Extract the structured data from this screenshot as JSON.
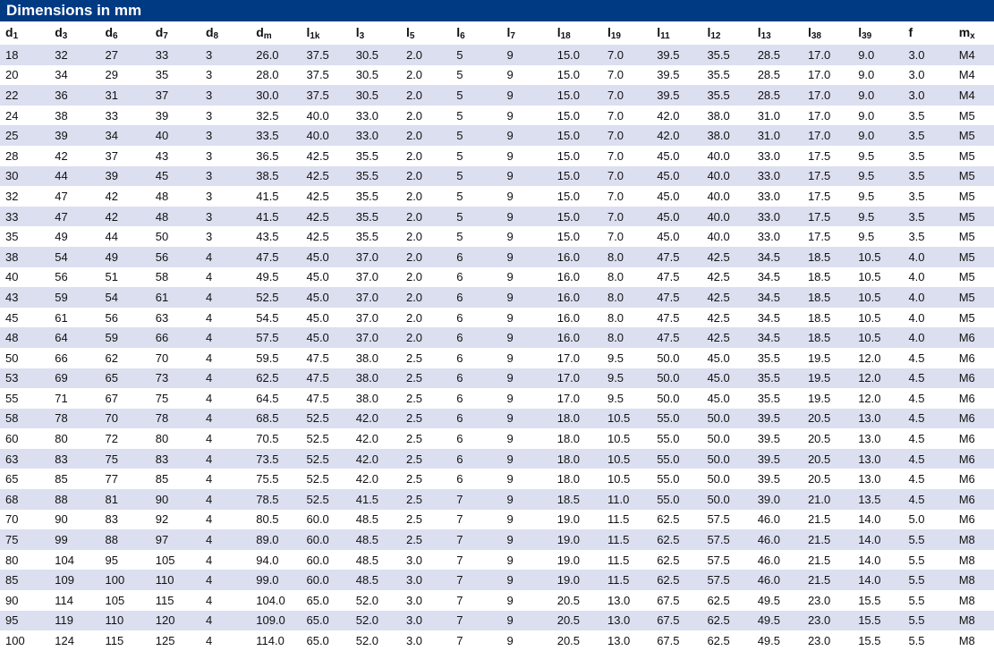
{
  "title": "Dimensions in mm",
  "columns": [
    {
      "base": "d",
      "sub": "1"
    },
    {
      "base": "d",
      "sub": "3"
    },
    {
      "base": "d",
      "sub": "6"
    },
    {
      "base": "d",
      "sub": "7"
    },
    {
      "base": "d",
      "sub": "8"
    },
    {
      "base": "d",
      "sub": "m"
    },
    {
      "base": "l",
      "sub": "1k"
    },
    {
      "base": "l",
      "sub": "3"
    },
    {
      "base": "l",
      "sub": "5"
    },
    {
      "base": "l",
      "sub": "6"
    },
    {
      "base": "l",
      "sub": "7"
    },
    {
      "base": "l",
      "sub": "18"
    },
    {
      "base": "l",
      "sub": "19"
    },
    {
      "base": "l",
      "sub": "11"
    },
    {
      "base": "l",
      "sub": "12"
    },
    {
      "base": "l",
      "sub": "13"
    },
    {
      "base": "l",
      "sub": "38"
    },
    {
      "base": "l",
      "sub": "39"
    },
    {
      "base": "f",
      "sub": ""
    },
    {
      "base": "m",
      "sub": "x"
    }
  ],
  "rows": [
    [
      "18",
      "32",
      "27",
      "33",
      "3",
      "26.0",
      "37.5",
      "30.5",
      "2.0",
      "5",
      "9",
      "15.0",
      "7.0",
      "39.5",
      "35.5",
      "28.5",
      "17.0",
      "9.0",
      "3.0",
      "M4"
    ],
    [
      "20",
      "34",
      "29",
      "35",
      "3",
      "28.0",
      "37.5",
      "30.5",
      "2.0",
      "5",
      "9",
      "15.0",
      "7.0",
      "39.5",
      "35.5",
      "28.5",
      "17.0",
      "9.0",
      "3.0",
      "M4"
    ],
    [
      "22",
      "36",
      "31",
      "37",
      "3",
      "30.0",
      "37.5",
      "30.5",
      "2.0",
      "5",
      "9",
      "15.0",
      "7.0",
      "39.5",
      "35.5",
      "28.5",
      "17.0",
      "9.0",
      "3.0",
      "M4"
    ],
    [
      "24",
      "38",
      "33",
      "39",
      "3",
      "32.5",
      "40.0",
      "33.0",
      "2.0",
      "5",
      "9",
      "15.0",
      "7.0",
      "42.0",
      "38.0",
      "31.0",
      "17.0",
      "9.0",
      "3.5",
      "M5"
    ],
    [
      "25",
      "39",
      "34",
      "40",
      "3",
      "33.5",
      "40.0",
      "33.0",
      "2.0",
      "5",
      "9",
      "15.0",
      "7.0",
      "42.0",
      "38.0",
      "31.0",
      "17.0",
      "9.0",
      "3.5",
      "M5"
    ],
    [
      "28",
      "42",
      "37",
      "43",
      "3",
      "36.5",
      "42.5",
      "35.5",
      "2.0",
      "5",
      "9",
      "15.0",
      "7.0",
      "45.0",
      "40.0",
      "33.0",
      "17.5",
      "9.5",
      "3.5",
      "M5"
    ],
    [
      "30",
      "44",
      "39",
      "45",
      "3",
      "38.5",
      "42.5",
      "35.5",
      "2.0",
      "5",
      "9",
      "15.0",
      "7.0",
      "45.0",
      "40.0",
      "33.0",
      "17.5",
      "9.5",
      "3.5",
      "M5"
    ],
    [
      "32",
      "47",
      "42",
      "48",
      "3",
      "41.5",
      "42.5",
      "35.5",
      "2.0",
      "5",
      "9",
      "15.0",
      "7.0",
      "45.0",
      "40.0",
      "33.0",
      "17.5",
      "9.5",
      "3.5",
      "M5"
    ],
    [
      "33",
      "47",
      "42",
      "48",
      "3",
      "41.5",
      "42.5",
      "35.5",
      "2.0",
      "5",
      "9",
      "15.0",
      "7.0",
      "45.0",
      "40.0",
      "33.0",
      "17.5",
      "9.5",
      "3.5",
      "M5"
    ],
    [
      "35",
      "49",
      "44",
      "50",
      "3",
      "43.5",
      "42.5",
      "35.5",
      "2.0",
      "5",
      "9",
      "15.0",
      "7.0",
      "45.0",
      "40.0",
      "33.0",
      "17.5",
      "9.5",
      "3.5",
      "M5"
    ],
    [
      "38",
      "54",
      "49",
      "56",
      "4",
      "47.5",
      "45.0",
      "37.0",
      "2.0",
      "6",
      "9",
      "16.0",
      "8.0",
      "47.5",
      "42.5",
      "34.5",
      "18.5",
      "10.5",
      "4.0",
      "M5"
    ],
    [
      "40",
      "56",
      "51",
      "58",
      "4",
      "49.5",
      "45.0",
      "37.0",
      "2.0",
      "6",
      "9",
      "16.0",
      "8.0",
      "47.5",
      "42.5",
      "34.5",
      "18.5",
      "10.5",
      "4.0",
      "M5"
    ],
    [
      "43",
      "59",
      "54",
      "61",
      "4",
      "52.5",
      "45.0",
      "37.0",
      "2.0",
      "6",
      "9",
      "16.0",
      "8.0",
      "47.5",
      "42.5",
      "34.5",
      "18.5",
      "10.5",
      "4.0",
      "M5"
    ],
    [
      "45",
      "61",
      "56",
      "63",
      "4",
      "54.5",
      "45.0",
      "37.0",
      "2.0",
      "6",
      "9",
      "16.0",
      "8.0",
      "47.5",
      "42.5",
      "34.5",
      "18.5",
      "10.5",
      "4.0",
      "M5"
    ],
    [
      "48",
      "64",
      "59",
      "66",
      "4",
      "57.5",
      "45.0",
      "37.0",
      "2.0",
      "6",
      "9",
      "16.0",
      "8.0",
      "47.5",
      "42.5",
      "34.5",
      "18.5",
      "10.5",
      "4.0",
      "M6"
    ],
    [
      "50",
      "66",
      "62",
      "70",
      "4",
      "59.5",
      "47.5",
      "38.0",
      "2.5",
      "6",
      "9",
      "17.0",
      "9.5",
      "50.0",
      "45.0",
      "35.5",
      "19.5",
      "12.0",
      "4.5",
      "M6"
    ],
    [
      "53",
      "69",
      "65",
      "73",
      "4",
      "62.5",
      "47.5",
      "38.0",
      "2.5",
      "6",
      "9",
      "17.0",
      "9.5",
      "50.0",
      "45.0",
      "35.5",
      "19.5",
      "12.0",
      "4.5",
      "M6"
    ],
    [
      "55",
      "71",
      "67",
      "75",
      "4",
      "64.5",
      "47.5",
      "38.0",
      "2.5",
      "6",
      "9",
      "17.0",
      "9.5",
      "50.0",
      "45.0",
      "35.5",
      "19.5",
      "12.0",
      "4.5",
      "M6"
    ],
    [
      "58",
      "78",
      "70",
      "78",
      "4",
      "68.5",
      "52.5",
      "42.0",
      "2.5",
      "6",
      "9",
      "18.0",
      "10.5",
      "55.0",
      "50.0",
      "39.5",
      "20.5",
      "13.0",
      "4.5",
      "M6"
    ],
    [
      "60",
      "80",
      "72",
      "80",
      "4",
      "70.5",
      "52.5",
      "42.0",
      "2.5",
      "6",
      "9",
      "18.0",
      "10.5",
      "55.0",
      "50.0",
      "39.5",
      "20.5",
      "13.0",
      "4.5",
      "M6"
    ],
    [
      "63",
      "83",
      "75",
      "83",
      "4",
      "73.5",
      "52.5",
      "42.0",
      "2.5",
      "6",
      "9",
      "18.0",
      "10.5",
      "55.0",
      "50.0",
      "39.5",
      "20.5",
      "13.0",
      "4.5",
      "M6"
    ],
    [
      "65",
      "85",
      "77",
      "85",
      "4",
      "75.5",
      "52.5",
      "42.0",
      "2.5",
      "6",
      "9",
      "18.0",
      "10.5",
      "55.0",
      "50.0",
      "39.5",
      "20.5",
      "13.0",
      "4.5",
      "M6"
    ],
    [
      "68",
      "88",
      "81",
      "90",
      "4",
      "78.5",
      "52.5",
      "41.5",
      "2.5",
      "7",
      "9",
      "18.5",
      "11.0",
      "55.0",
      "50.0",
      "39.0",
      "21.0",
      "13.5",
      "4.5",
      "M6"
    ],
    [
      "70",
      "90",
      "83",
      "92",
      "4",
      "80.5",
      "60.0",
      "48.5",
      "2.5",
      "7",
      "9",
      "19.0",
      "11.5",
      "62.5",
      "57.5",
      "46.0",
      "21.5",
      "14.0",
      "5.0",
      "M6"
    ],
    [
      "75",
      "99",
      "88",
      "97",
      "4",
      "89.0",
      "60.0",
      "48.5",
      "2.5",
      "7",
      "9",
      "19.0",
      "11.5",
      "62.5",
      "57.5",
      "46.0",
      "21.5",
      "14.0",
      "5.5",
      "M8"
    ],
    [
      "80",
      "104",
      "95",
      "105",
      "4",
      "94.0",
      "60.0",
      "48.5",
      "3.0",
      "7",
      "9",
      "19.0",
      "11.5",
      "62.5",
      "57.5",
      "46.0",
      "21.5",
      "14.0",
      "5.5",
      "M8"
    ],
    [
      "85",
      "109",
      "100",
      "110",
      "4",
      "99.0",
      "60.0",
      "48.5",
      "3.0",
      "7",
      "9",
      "19.0",
      "11.5",
      "62.5",
      "57.5",
      "46.0",
      "21.5",
      "14.0",
      "5.5",
      "M8"
    ],
    [
      "90",
      "114",
      "105",
      "115",
      "4",
      "104.0",
      "65.0",
      "52.0",
      "3.0",
      "7",
      "9",
      "20.5",
      "13.0",
      "67.5",
      "62.5",
      "49.5",
      "23.0",
      "15.5",
      "5.5",
      "M8"
    ],
    [
      "95",
      "119",
      "110",
      "120",
      "4",
      "109.0",
      "65.0",
      "52.0",
      "3.0",
      "7",
      "9",
      "20.5",
      "13.0",
      "67.5",
      "62.5",
      "49.5",
      "23.0",
      "15.5",
      "5.5",
      "M8"
    ],
    [
      "100",
      "124",
      "115",
      "125",
      "4",
      "114.0",
      "65.0",
      "52.0",
      "3.0",
      "7",
      "9",
      "20.5",
      "13.0",
      "67.5",
      "62.5",
      "49.5",
      "23.0",
      "15.5",
      "5.5",
      "M8"
    ]
  ]
}
